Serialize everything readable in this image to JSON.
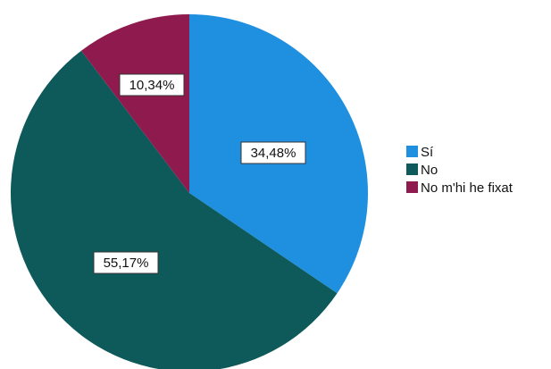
{
  "chart_data": {
    "type": "pie",
    "categories": [
      "Sí",
      "No",
      "No m'hi he fixat"
    ],
    "values": [
      34.48,
      55.17,
      10.34
    ],
    "labels": [
      "34,48%",
      "55,17%",
      "10,34%"
    ],
    "colors": [
      "#1f8fe0",
      "#0e5a5a",
      "#8f1b4e"
    ],
    "legend_position": "right",
    "start_angle": "12 o'clock",
    "direction": "clockwise"
  }
}
